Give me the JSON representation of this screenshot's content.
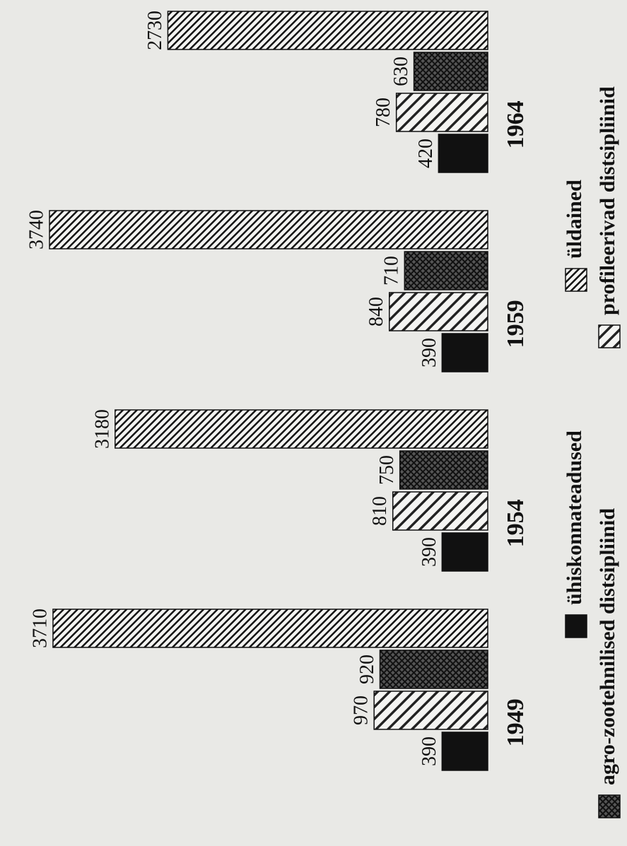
{
  "chart_data": {
    "type": "bar",
    "orientation": "horizontal-rotated",
    "categories": [
      "1949",
      "1954",
      "1959",
      "1964"
    ],
    "series": [
      {
        "name": "ühiskonnateadused",
        "color": "#111111",
        "pattern": "solid",
        "values": [
          390,
          390,
          390,
          420
        ]
      },
      {
        "name": "profileerivad distsipliinid",
        "color": "#222222",
        "pattern": "diagonal",
        "values": [
          970,
          810,
          840,
          780
        ]
      },
      {
        "name": "agro-zootehnilised distsipliinid",
        "color": "#222222",
        "pattern": "crosshatch",
        "values": [
          920,
          750,
          710,
          630
        ]
      },
      {
        "name": "üldained",
        "color": "#111111",
        "pattern": "dense-diagonal",
        "values": [
          3710,
          3180,
          3740,
          2730
        ]
      }
    ]
  }
}
